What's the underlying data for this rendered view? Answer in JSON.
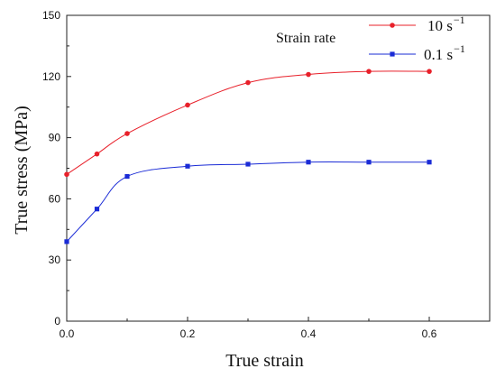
{
  "chart_data": {
    "type": "line",
    "xlabel": "True strain",
    "ylabel": "True stress (MPa)",
    "xlim": [
      0,
      0.7
    ],
    "ylim": [
      0,
      150
    ],
    "xticks": [
      "0.0",
      "0.2",
      "0.4",
      "0.6"
    ],
    "yticks": [
      "0",
      "30",
      "60",
      "90",
      "120",
      "150"
    ],
    "grid": false,
    "legend": {
      "title": "Strain rate",
      "placement": "top-right"
    },
    "series": [
      {
        "name": "10 s",
        "name_exponent": "−1",
        "color": "#e8202a",
        "marker": "circle",
        "x": [
          0,
          0.05,
          0.1,
          0.2,
          0.3,
          0.4,
          0.5,
          0.6
        ],
        "y": [
          72,
          82,
          92,
          106,
          117,
          121,
          122.5,
          122.5
        ]
      },
      {
        "name": "0.1 s",
        "name_exponent": "−1",
        "color": "#1a2bd6",
        "marker": "square",
        "x": [
          0,
          0.05,
          0.1,
          0.2,
          0.3,
          0.4,
          0.5,
          0.6
        ],
        "y": [
          39,
          55,
          71,
          76,
          77,
          78,
          78,
          78
        ]
      }
    ]
  }
}
